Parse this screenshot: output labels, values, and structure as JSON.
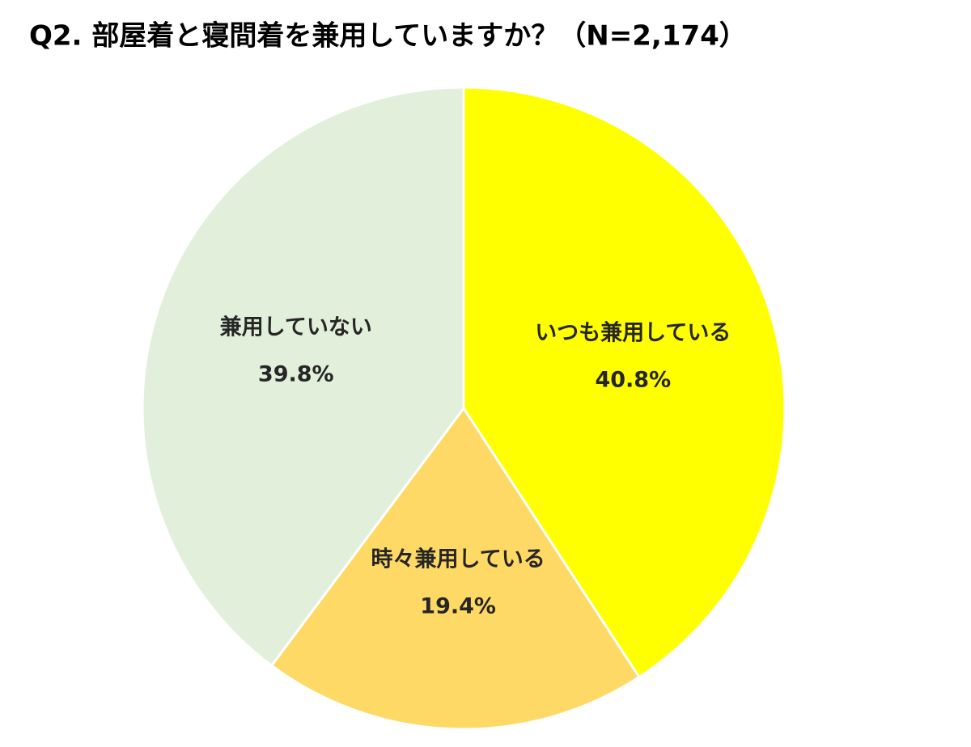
{
  "chart_data": {
    "type": "pie",
    "title": "Q2. 部屋着と寝間着を兼用していますか？（N=2,174）",
    "categories": [
      "いつも兼用している",
      "時々兼用している",
      "兼用していない"
    ],
    "values": [
      40.8,
      19.4,
      39.8
    ],
    "value_labels": [
      "40.8%",
      "19.4%",
      "39.8%"
    ],
    "colors": [
      "#FFFF00",
      "#FFD966",
      "#E2EFDA"
    ]
  }
}
